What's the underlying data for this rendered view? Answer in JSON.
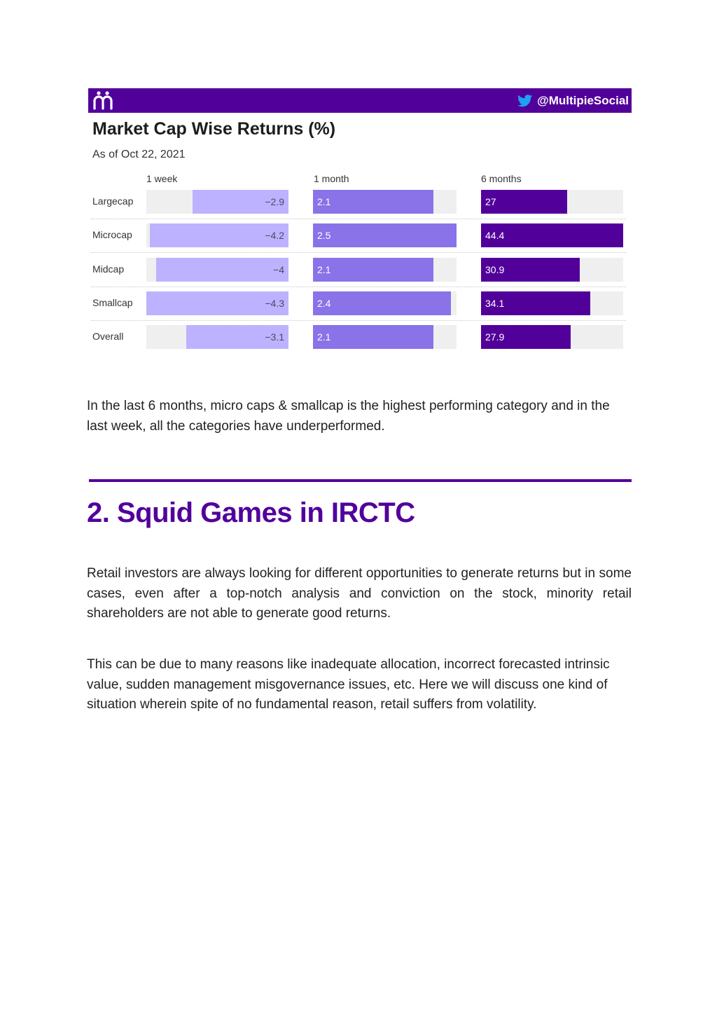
{
  "figure": {
    "brand_handle": "@MultipieSocial",
    "logo_icon": "multipie-logo-icon",
    "twitter_icon": "twitter-bird-icon",
    "colors": {
      "brand": "#52009a",
      "week": "#bdb2ff",
      "month": "#8a72e8",
      "six_months": "#52009a",
      "track": "#efefef"
    }
  },
  "chart_data": {
    "type": "bar",
    "title": "Market Cap Wise Returns (%)",
    "subtitle": "As of Oct 22, 2021",
    "categories": [
      "Largecap",
      "Microcap",
      "Midcap",
      "Smallcap",
      "Overall"
    ],
    "series": [
      {
        "name": "1 week",
        "values": [
          -2.9,
          -4.2,
          -4,
          -4.3,
          -3.1
        ],
        "labels": [
          "−2.9",
          "−4.2",
          "−4",
          "−4.3",
          "−3.1"
        ]
      },
      {
        "name": "1 month",
        "values": [
          2.1,
          2.5,
          2.1,
          2.4,
          2.1
        ],
        "labels": [
          "2.1",
          "2.5",
          "2.1",
          "2.4",
          "2.1"
        ]
      },
      {
        "name": "6 months",
        "values": [
          27,
          44.4,
          30.9,
          34.1,
          27.9
        ],
        "labels": [
          "27",
          "44.4",
          "30.9",
          "34.1",
          "27.9"
        ]
      }
    ]
  },
  "text": {
    "para1": "In the last 6 months, micro caps & smallcap is the highest performing category and in the last week, all the categories have underperformed.",
    "heading": "2. Squid Games in IRCTC",
    "para2": "Retail investors are always looking for different opportunities to generate returns but in some cases, even after a top-notch analysis and conviction on the stock, minority retail shareholders are not able to generate good returns.",
    "para3": "This can be due to many reasons like inadequate allocation, incorrect forecasted intrinsic value, sudden management misgovernance issues, etc. Here we will discuss one kind of situation wherein spite of no fundamental reason, retail suffers from volatility."
  }
}
